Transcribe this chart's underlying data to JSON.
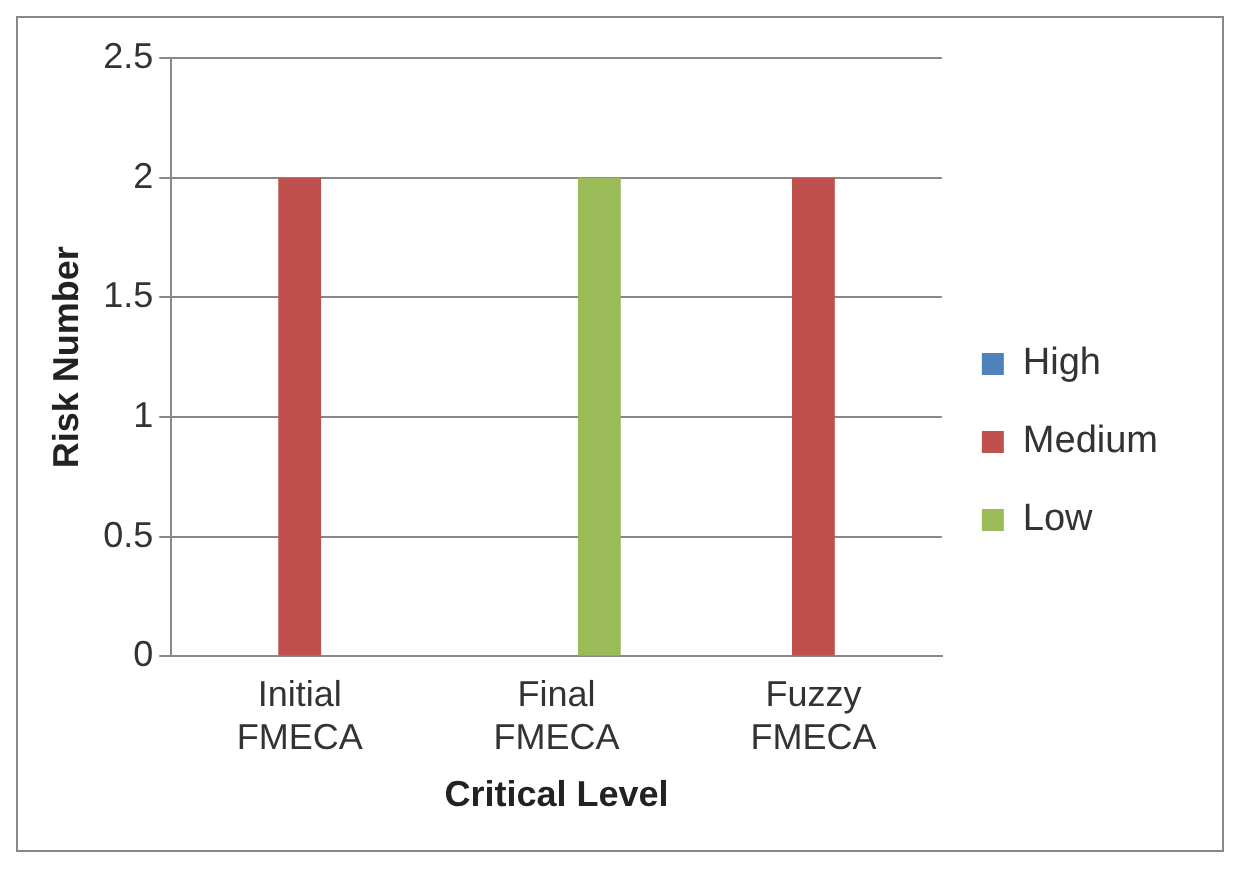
{
  "chart_data": {
    "type": "bar",
    "xlabel": "Critical Level",
    "ylabel": "Risk Number",
    "categories": [
      "Initial FMECA",
      "Final FMECA",
      "Fuzzy FMECA"
    ],
    "series": [
      {
        "name": "High",
        "color": "#4f81bd",
        "values": [
          0,
          0,
          0
        ]
      },
      {
        "name": "Medium",
        "color": "#c0504d",
        "values": [
          2,
          0,
          2
        ]
      },
      {
        "name": "Low",
        "color": "#9bbb59",
        "values": [
          0,
          2,
          0
        ]
      }
    ],
    "ylim": [
      0,
      2.5
    ],
    "yticks": [
      0,
      0.5,
      1,
      1.5,
      2,
      2.5
    ],
    "grid": "y",
    "legend": "right"
  }
}
